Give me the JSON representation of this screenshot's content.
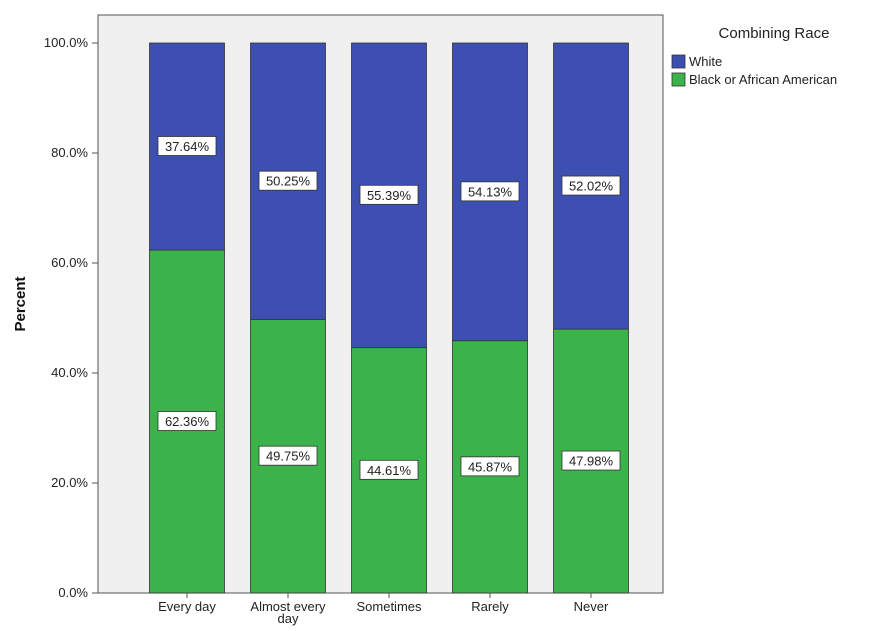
{
  "chart_data": {
    "type": "bar",
    "stacked": true,
    "categories": [
      "Every day",
      "Almost every day",
      "Sometimes",
      "Rarely",
      "Never"
    ],
    "category_lines": [
      [
        "Every day"
      ],
      [
        "Almost every",
        "day"
      ],
      [
        "Sometimes"
      ],
      [
        "Rarely"
      ],
      [
        "Never"
      ]
    ],
    "series": [
      {
        "name": "Black or African American",
        "values": [
          62.36,
          49.75,
          44.61,
          45.87,
          47.98
        ],
        "labels": [
          "62.36%",
          "49.75%",
          "44.61%",
          "45.87%",
          "47.98%"
        ],
        "color": "#3cb24a"
      },
      {
        "name": "White",
        "values": [
          37.64,
          50.25,
          55.39,
          54.13,
          52.02
        ],
        "labels": [
          "37.64%",
          "50.25%",
          "55.39%",
          "54.13%",
          "52.02%"
        ],
        "color": "#3e4fb2"
      }
    ],
    "ylabel": "Percent",
    "xlabel": "",
    "ylim": [
      0,
      100
    ],
    "yticks": [
      "0.0%",
      "20.0%",
      "40.0%",
      "60.0%",
      "80.0%",
      "100.0%"
    ],
    "legend": {
      "title": "Combining Race",
      "placement": "right",
      "entries": [
        "White",
        "Black or African American"
      ]
    },
    "plot_background": "#f0f0f0",
    "grid": false
  }
}
